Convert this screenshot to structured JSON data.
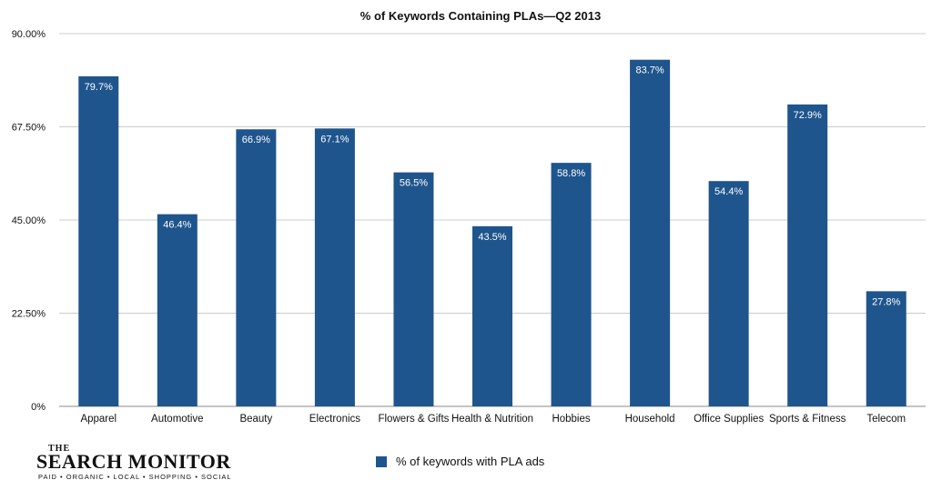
{
  "chart_data": {
    "type": "bar",
    "title": "% of Keywords Containing PLAs—Q2 2013",
    "categories": [
      "Apparel",
      "Automotive",
      "Beauty",
      "Electronics",
      "Flowers & Gifts",
      "Health & Nutrition",
      "Hobbies",
      "Household",
      "Office Supplies",
      "Sports & Fitness",
      "Telecom"
    ],
    "series": [
      {
        "name": "% of keywords with PLA ads",
        "values": [
          79.7,
          46.4,
          66.9,
          67.1,
          56.5,
          43.5,
          58.8,
          83.7,
          54.4,
          72.9,
          27.8
        ],
        "data_labels": [
          "79.7%",
          "46.4%",
          "66.9%",
          "67.1%",
          "56.5%",
          "43.5%",
          "58.8%",
          "83.7%",
          "54.4%",
          "72.9%",
          "27.8%"
        ],
        "color": "#1f558d"
      }
    ],
    "y_ticks": [
      0,
      22.5,
      45,
      67.5,
      90
    ],
    "y_tick_labels": [
      "0%",
      "22.50%",
      "45.00%",
      "67.50%",
      "90.00%"
    ],
    "ylim": [
      0,
      90
    ],
    "xlabel": "",
    "ylabel": "",
    "grid": true,
    "legend": "bottom-center"
  },
  "logo": {
    "the": "THE",
    "name": "SEARCH MONITOR",
    "tagline": "PAID • ORGANIC • LOCAL • SHOPPING • SOCIAL"
  }
}
